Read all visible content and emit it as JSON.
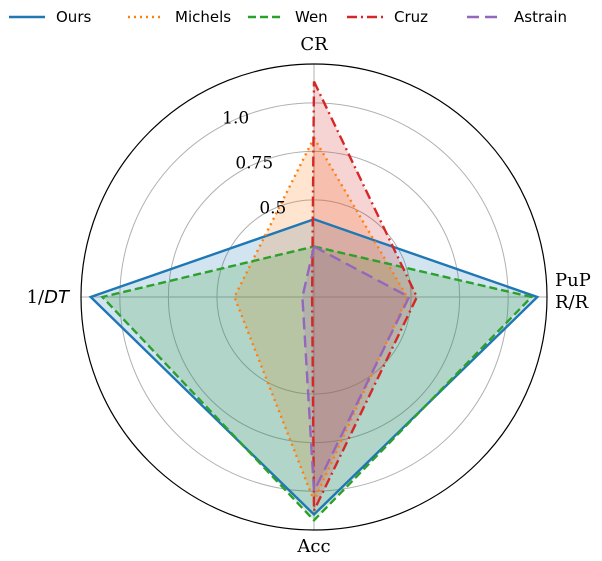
{
  "chart_data": {
    "type": "radar",
    "axes": [
      "CR",
      "PuP R/R",
      "Acc",
      "1/DT"
    ],
    "axis_label_display": {
      "CR": [
        "CR"
      ],
      "PuP R/R": [
        "PuP",
        "R/R"
      ],
      "Acc": [
        "Acc"
      ],
      "1/DT": [
        "1/DT"
      ]
    },
    "radial_ticks": [
      "0.5",
      "0.75",
      "1.0"
    ],
    "radial_tick_values": [
      0.5,
      0.75,
      1.0
    ],
    "rlim": [
      0.0,
      1.2
    ],
    "grid": true,
    "legend_position": "top",
    "series": [
      {
        "name": "Ours",
        "color": "#1f77b4",
        "dash": "solid",
        "values": [
          0.4,
          1.15,
          1.12,
          1.15
        ]
      },
      {
        "name": "Michels",
        "color": "#ff7f0e",
        "dash": "dotted",
        "values": [
          0.82,
          0.48,
          1.05,
          0.41
        ]
      },
      {
        "name": "Wen",
        "color": "#2ca02c",
        "dash": "dashed",
        "values": [
          0.26,
          1.12,
          1.15,
          1.09
        ]
      },
      {
        "name": "Cruz",
        "color": "#d62728",
        "dash": "dashdot",
        "values": [
          1.11,
          0.53,
          1.1,
          0.01
        ]
      },
      {
        "name": "Astrain",
        "color": "#9467bd",
        "dash": "longdash",
        "values": [
          0.26,
          0.49,
          1.0,
          0.06
        ]
      }
    ]
  }
}
